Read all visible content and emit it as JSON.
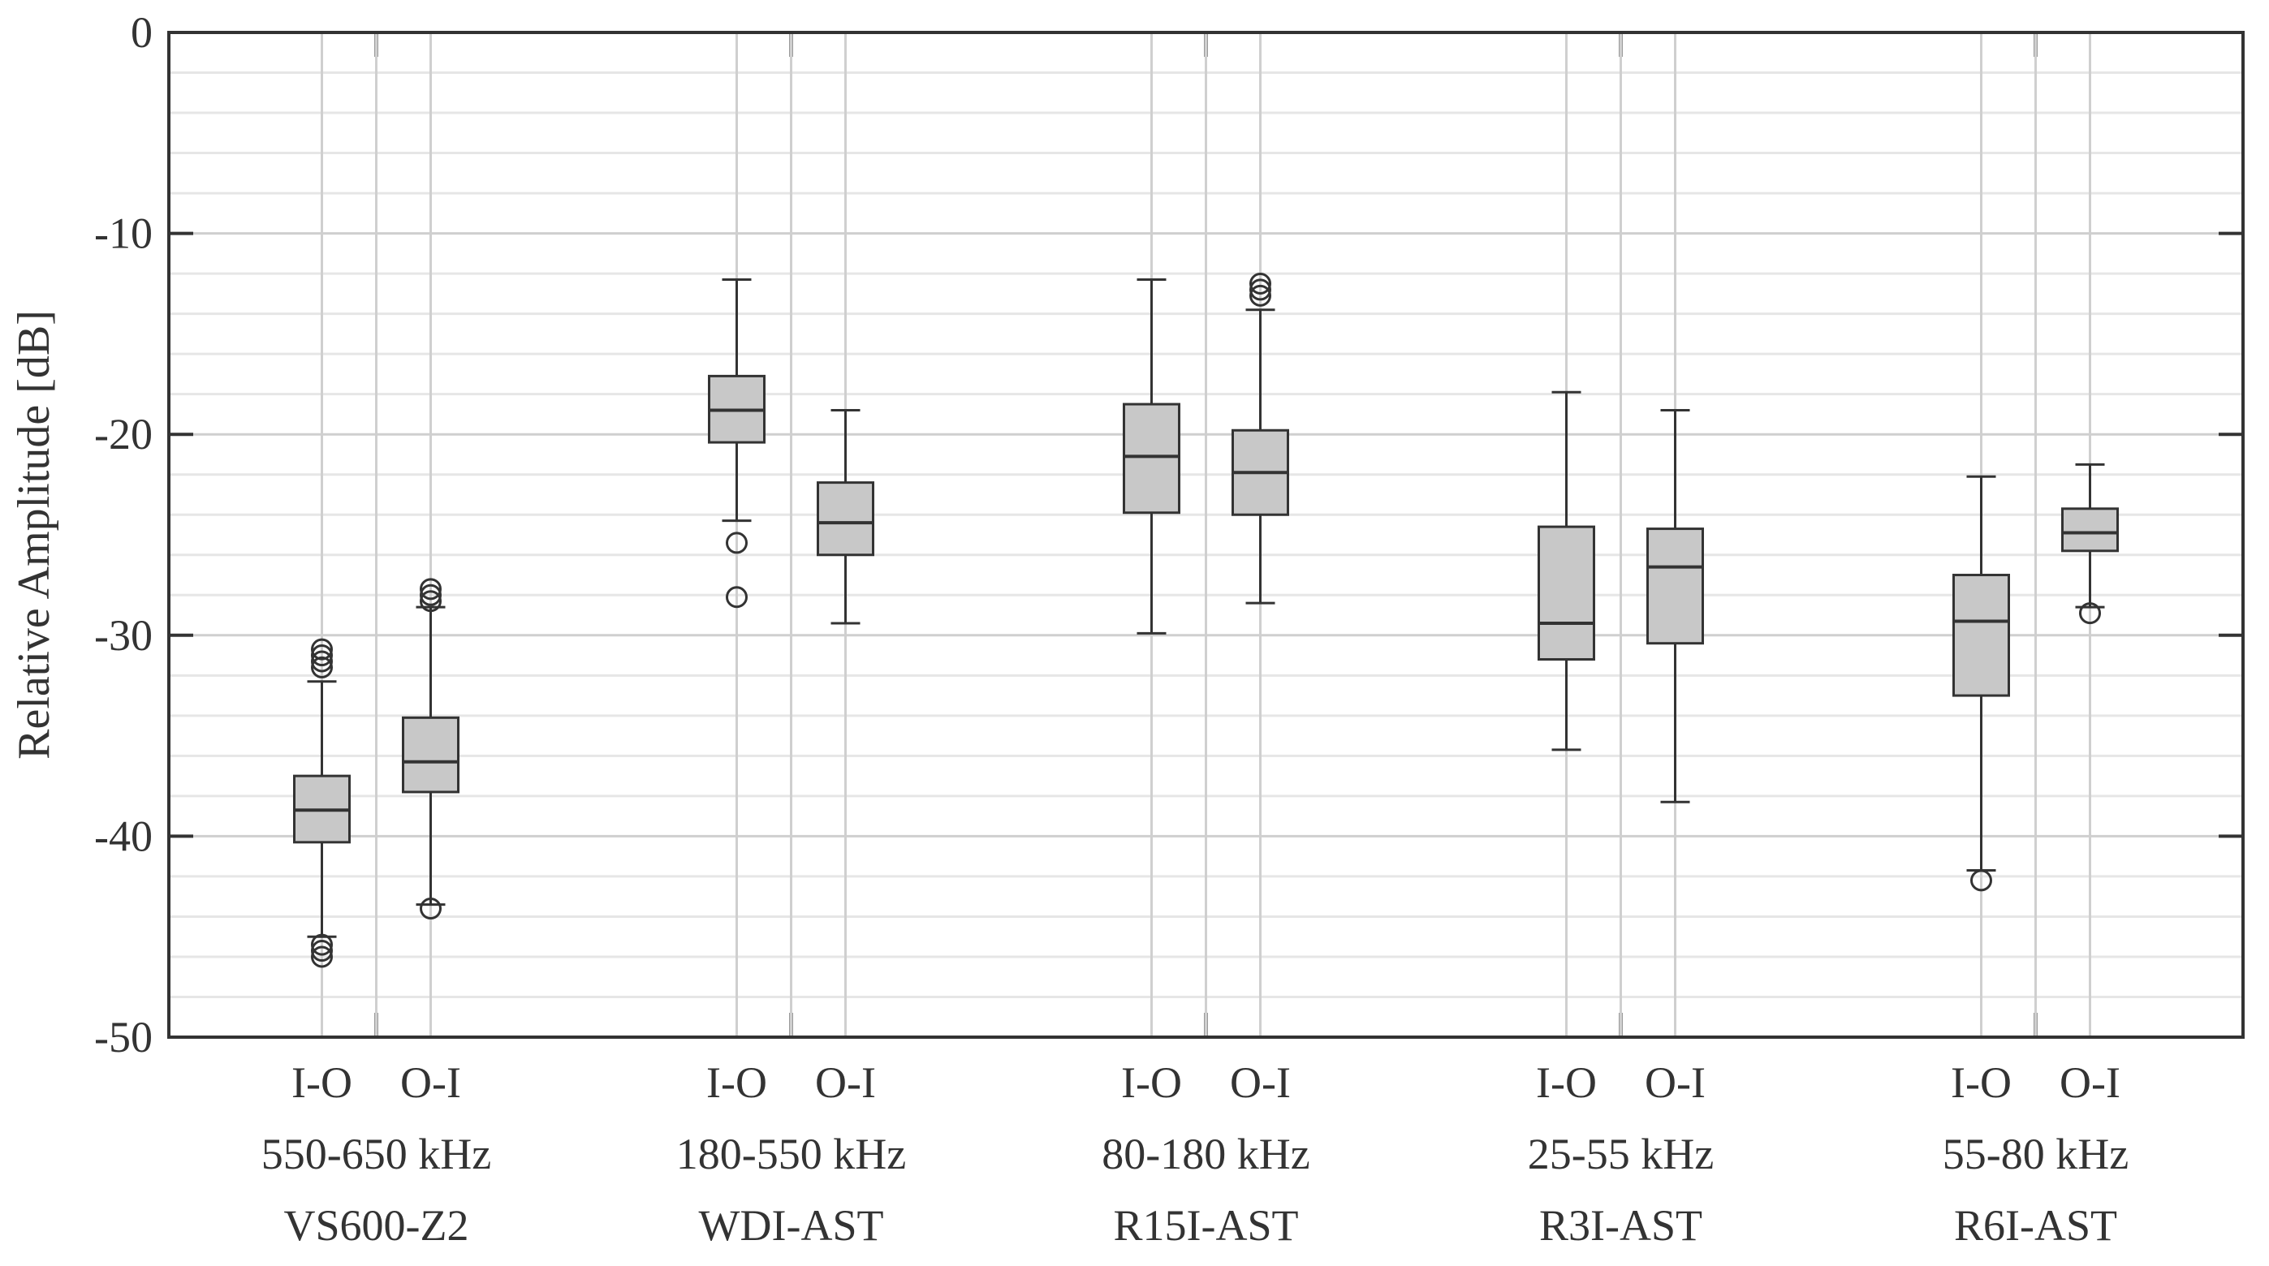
{
  "chart_data": {
    "type": "box",
    "ylabel": "Relative Amplitude [dB]",
    "xlabel": "",
    "ylim": [
      -50,
      0
    ],
    "yticks": [
      0,
      -10,
      -20,
      -30,
      -40,
      -50
    ],
    "grid": true,
    "groups": [
      {
        "sensor": "VS600-Z2",
        "band": "550-650 kHz",
        "boxes": [
          {
            "label": "I-O",
            "whisker_low": -45.0,
            "q1": -40.3,
            "median": -38.7,
            "q3": -37.0,
            "whisker_high": -32.3,
            "outliers": [
              -30.7,
              -31.0,
              -31.3,
              -31.6,
              -45.4,
              -45.7,
              -46.0
            ]
          },
          {
            "label": "O-I",
            "whisker_low": -43.4,
            "q1": -37.8,
            "median": -36.3,
            "q3": -34.1,
            "whisker_high": -28.6,
            "outliers": [
              -27.7,
              -28.0,
              -28.3,
              -43.6
            ]
          }
        ]
      },
      {
        "sensor": "WDI-AST",
        "band": "180-550 kHz",
        "boxes": [
          {
            "label": "I-O",
            "whisker_low": -24.3,
            "q1": -20.4,
            "median": -18.8,
            "q3": -17.1,
            "whisker_high": -12.3,
            "outliers": [
              -25.4,
              -28.1
            ]
          },
          {
            "label": "O-I",
            "whisker_low": -29.4,
            "q1": -26.0,
            "median": -24.4,
            "q3": -22.4,
            "whisker_high": -18.8,
            "outliers": []
          }
        ]
      },
      {
        "sensor": "R15I-AST",
        "band": "80-180 kHz",
        "boxes": [
          {
            "label": "I-O",
            "whisker_low": -29.9,
            "q1": -23.9,
            "median": -21.1,
            "q3": -18.5,
            "whisker_high": -12.3,
            "outliers": []
          },
          {
            "label": "O-I",
            "whisker_low": -28.4,
            "q1": -24.0,
            "median": -21.9,
            "q3": -19.8,
            "whisker_high": -13.8,
            "outliers": [
              -12.5,
              -12.8,
              -13.1
            ]
          }
        ]
      },
      {
        "sensor": "R3I-AST",
        "band": "25-55 kHz",
        "boxes": [
          {
            "label": "I-O",
            "whisker_low": -35.7,
            "q1": -31.2,
            "median": -29.4,
            "q3": -24.6,
            "whisker_high": -17.9,
            "outliers": []
          },
          {
            "label": "O-I",
            "whisker_low": -38.3,
            "q1": -30.4,
            "median": -26.6,
            "q3": -24.7,
            "whisker_high": -18.8,
            "outliers": []
          }
        ]
      },
      {
        "sensor": "R6I-AST",
        "band": "55-80 kHz",
        "boxes": [
          {
            "label": "I-O",
            "whisker_low": -41.7,
            "q1": -33.0,
            "median": -29.3,
            "q3": -27.0,
            "whisker_high": -22.1,
            "outliers": [
              -42.2
            ]
          },
          {
            "label": "O-I",
            "whisker_low": -28.6,
            "q1": -25.8,
            "median": -24.9,
            "q3": -23.7,
            "whisker_high": -21.5,
            "outliers": [
              -28.9
            ]
          }
        ]
      }
    ],
    "colors": {
      "box_fill": "#c8c8c8",
      "line": "#333333",
      "grid_major": "#cfcfcf",
      "grid_minor": "#e6e6e6"
    }
  }
}
